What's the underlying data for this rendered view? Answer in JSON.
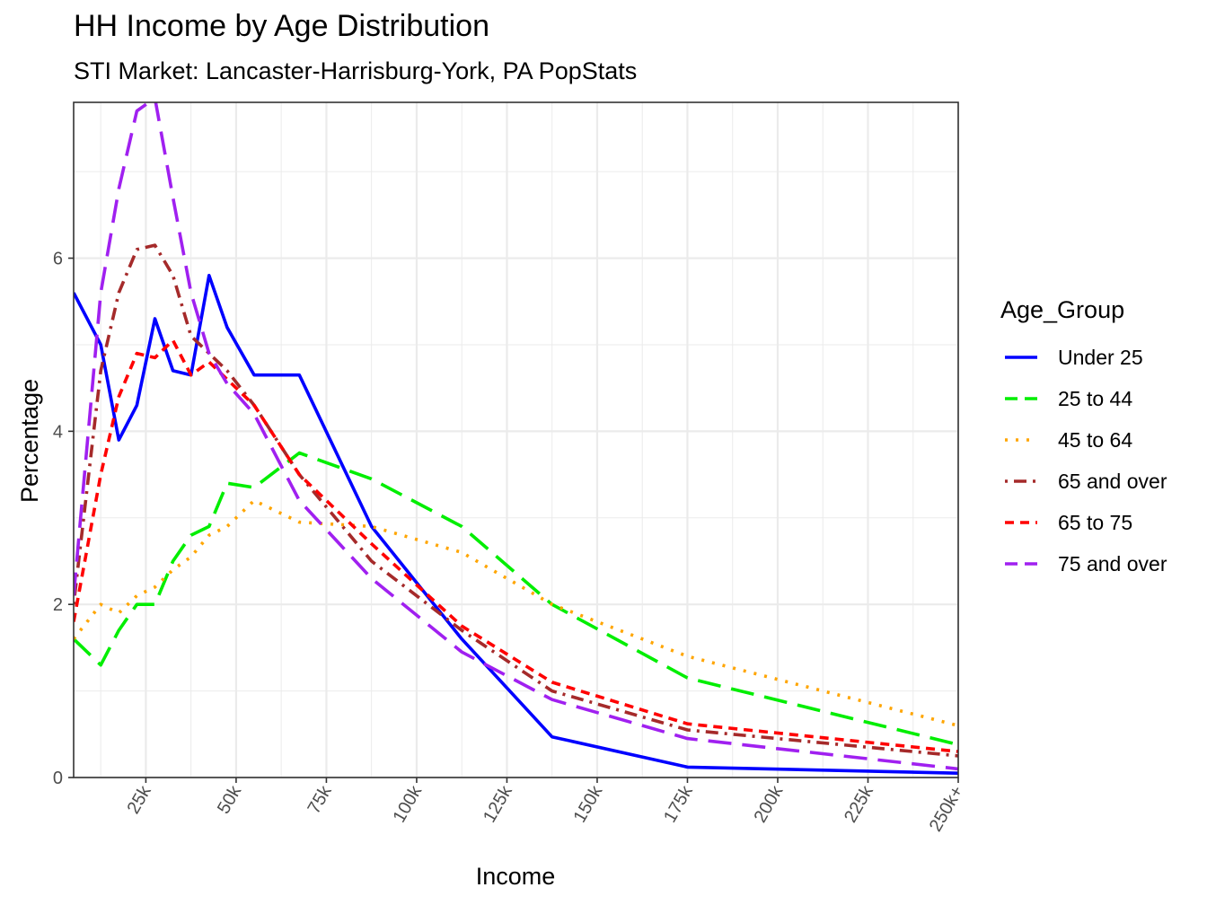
{
  "chart_data": {
    "type": "line",
    "title": "HH Income by Age Distribution",
    "subtitle": "STI Market: Lancaster-Harrisburg-York, PA PopStats",
    "xlabel": "Income",
    "ylabel": "Percentage",
    "xlim": [
      5,
      250
    ],
    "ylim": [
      0,
      7.8
    ],
    "x_ticks": [
      25,
      50,
      75,
      100,
      125,
      150,
      175,
      200,
      225,
      250
    ],
    "x_tick_labels": [
      "25k",
      "50k",
      "75k",
      "100k",
      "125k",
      "150k",
      "175k",
      "200k",
      "225k",
      "250k+"
    ],
    "y_ticks": [
      0,
      2,
      4,
      6
    ],
    "y_tick_labels": [
      "0",
      "2",
      "4",
      "6"
    ],
    "grid": true,
    "legend_position": "right",
    "legend_title": "Age_Group",
    "x": [
      5,
      12.5,
      17.5,
      22.5,
      27.5,
      32.5,
      37.5,
      42.5,
      47.5,
      55,
      67.5,
      87.5,
      112.5,
      137.5,
      175,
      250
    ],
    "series": [
      {
        "name": "Under 25",
        "color": "#0000ff",
        "dash": "solid",
        "values": [
          5.6,
          5.0,
          3.9,
          4.3,
          5.3,
          4.7,
          4.65,
          5.8,
          5.2,
          4.65,
          4.65,
          2.9,
          1.6,
          0.47,
          0.12,
          0.05
        ]
      },
      {
        "name": "25 to 44",
        "color": "#00ee00",
        "dash": "longdash",
        "values": [
          1.6,
          1.3,
          1.7,
          2.0,
          2.0,
          2.5,
          2.8,
          2.9,
          3.4,
          3.35,
          3.75,
          3.45,
          2.9,
          2.0,
          1.15,
          0.38
        ]
      },
      {
        "name": "45 to 64",
        "color": "#ffa500",
        "dash": "dotted",
        "values": [
          1.6,
          2.0,
          1.9,
          2.1,
          2.2,
          2.4,
          2.55,
          2.8,
          2.9,
          3.2,
          2.95,
          2.9,
          2.6,
          2.0,
          1.4,
          0.6
        ]
      },
      {
        "name": "65 and over",
        "color": "#a52a2a",
        "dash": "dotdash",
        "values": [
          2.0,
          4.7,
          5.6,
          6.1,
          6.15,
          5.8,
          5.1,
          4.9,
          4.7,
          4.3,
          3.5,
          2.5,
          1.7,
          1.0,
          0.55,
          0.25
        ]
      },
      {
        "name": "65 to 75",
        "color": "#ff0000",
        "dash": "dashed",
        "values": [
          1.8,
          3.5,
          4.4,
          4.9,
          4.85,
          5.05,
          4.65,
          4.8,
          4.6,
          4.3,
          3.5,
          2.7,
          1.75,
          1.1,
          0.62,
          0.3
        ]
      },
      {
        "name": "75 and over",
        "color": "#a020f0",
        "dash": "longdash",
        "values": [
          2.1,
          5.6,
          6.8,
          7.7,
          7.85,
          6.7,
          5.6,
          4.9,
          4.55,
          4.2,
          3.2,
          2.3,
          1.45,
          0.9,
          0.45,
          0.1
        ]
      }
    ]
  }
}
